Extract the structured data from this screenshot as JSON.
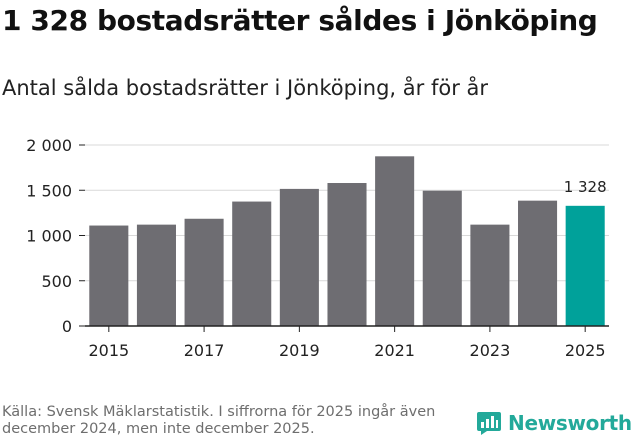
{
  "header": {
    "title": "1 328 bostadsrätter såldes i Jönköping",
    "subtitle": "Antal sålda bostadsrätter i Jönköping, år för år"
  },
  "chart_data": {
    "type": "bar",
    "categories": [
      "2015",
      "2016",
      "2017",
      "2018",
      "2019",
      "2020",
      "2021",
      "2022",
      "2023",
      "2024",
      "2025"
    ],
    "values": [
      1110,
      1120,
      1185,
      1375,
      1515,
      1580,
      1875,
      1495,
      1120,
      1385,
      1328
    ],
    "x_tick_labels": [
      "2015",
      "2017",
      "2019",
      "2021",
      "2023",
      "2025"
    ],
    "y_ticks": [
      0,
      500,
      1000,
      1500,
      2000
    ],
    "y_tick_labels": [
      "0",
      "500",
      "1 000",
      "1 500",
      "2 000"
    ],
    "ylim": [
      0,
      2000
    ],
    "grid": true,
    "highlight_index": 10,
    "highlight_label": "1 328",
    "colors": {
      "bar": "#6e6d72",
      "highlight": "#00a19a",
      "grid": "#d9d9d9",
      "axis": "#222222"
    }
  },
  "footer": {
    "source": "Källa: Svensk Mäklarstatistik. I siffrorna för 2025 ingår även december 2024, men inte december 2025.",
    "brand": "Newsworthy",
    "brand_icon": "newsworthy-logo-icon",
    "brand_color": "#23a99a"
  }
}
